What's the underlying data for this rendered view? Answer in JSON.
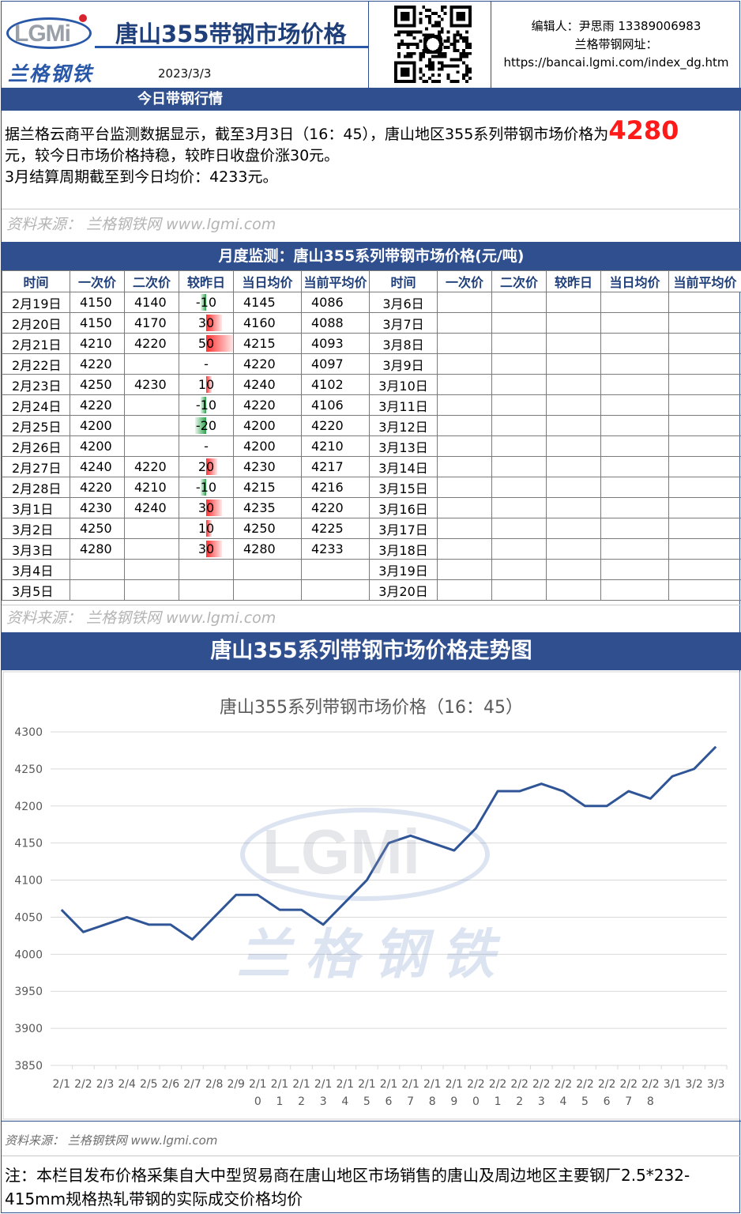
{
  "header": {
    "logo_text": "LGMi",
    "brand_cn": "兰格钢铁",
    "title": "唐山355带钢市场价格",
    "date": "2023/3/3",
    "editor": "编辑人：尹思雨 13389006983",
    "site_label": "兰格带钢网址：",
    "site_url": "https://bancai.lgmi.com/index_dg.htm"
  },
  "today_section": {
    "title": "今日带钢行情",
    "summary_prefix": "据兰格云商平台监测数据显示，截至3月3日（16：45），唐山地区355系列带钢市场价格为",
    "price": "4280",
    "summary_suffix": "元，较今日市场价格持稳，较昨日收盘价涨30元。",
    "summary_line3": "3月结算周期截至到今日均价：4233元。",
    "source": "资料来源： 兰格钢铁网 www.lgmi.com"
  },
  "monthly": {
    "title": "月度监测：唐山355系列带钢市场价格(元/吨)",
    "headers": [
      "时间",
      "一次价",
      "二次价",
      "较昨日",
      "当日均价",
      "当前平均价",
      "时间",
      "一次价",
      "二次价",
      "较昨日",
      "当日均价",
      "当前平均价"
    ],
    "rows": [
      {
        "date": "2月19日",
        "p1": "4150",
        "p2": "4140",
        "chg": "-10",
        "chg_num": -10,
        "avg": "4145",
        "cur": "4086",
        "date2": "3月6日"
      },
      {
        "date": "2月20日",
        "p1": "4150",
        "p2": "4170",
        "chg": "30",
        "chg_num": 30,
        "avg": "4160",
        "cur": "4088",
        "date2": "3月7日"
      },
      {
        "date": "2月21日",
        "p1": "4210",
        "p2": "4220",
        "chg": "50",
        "chg_num": 50,
        "avg": "4215",
        "cur": "4093",
        "date2": "3月8日"
      },
      {
        "date": "2月22日",
        "p1": "4220",
        "p2": "",
        "chg": "-",
        "chg_num": 0,
        "avg": "4220",
        "cur": "4097",
        "date2": "3月9日"
      },
      {
        "date": "2月23日",
        "p1": "4250",
        "p2": "4230",
        "chg": "10",
        "chg_num": 10,
        "avg": "4240",
        "cur": "4102",
        "date2": "3月10日"
      },
      {
        "date": "2月24日",
        "p1": "4220",
        "p2": "",
        "chg": "-10",
        "chg_num": -10,
        "avg": "4220",
        "cur": "4106",
        "date2": "3月11日"
      },
      {
        "date": "2月25日",
        "p1": "4200",
        "p2": "",
        "chg": "-20",
        "chg_num": -20,
        "avg": "4200",
        "cur": "4220",
        "date2": "3月12日"
      },
      {
        "date": "2月26日",
        "p1": "4200",
        "p2": "",
        "chg": "-",
        "chg_num": 0,
        "avg": "4200",
        "cur": "4210",
        "date2": "3月13日"
      },
      {
        "date": "2月27日",
        "p1": "4240",
        "p2": "4220",
        "chg": "20",
        "chg_num": 20,
        "avg": "4230",
        "cur": "4217",
        "date2": "3月14日"
      },
      {
        "date": "2月28日",
        "p1": "4220",
        "p2": "4210",
        "chg": "-10",
        "chg_num": -10,
        "avg": "4215",
        "cur": "4216",
        "date2": "3月15日"
      },
      {
        "date": "3月1日",
        "p1": "4230",
        "p2": "4240",
        "chg": "30",
        "chg_num": 30,
        "avg": "4235",
        "cur": "4220",
        "date2": "3月16日"
      },
      {
        "date": "3月2日",
        "p1": "4250",
        "p2": "",
        "chg": "10",
        "chg_num": 10,
        "avg": "4250",
        "cur": "4225",
        "date2": "3月17日"
      },
      {
        "date": "3月3日",
        "p1": "4280",
        "p2": "",
        "chg": "30",
        "chg_num": 30,
        "avg": "4280",
        "cur": "4233",
        "date2": "3月18日"
      },
      {
        "date": "3月4日",
        "p1": "",
        "p2": "",
        "chg": "",
        "chg_num": 0,
        "avg": "",
        "cur": "",
        "date2": "3月19日"
      },
      {
        "date": "3月5日",
        "p1": "",
        "p2": "",
        "chg": "",
        "chg_num": 0,
        "avg": "",
        "cur": "",
        "date2": "3月20日"
      }
    ],
    "source": "资料来源： 兰格钢铁网 www.lgmi.com"
  },
  "chart_section": {
    "title": "唐山355系列带钢市场价格走势图",
    "watermark_logo": "LGMi",
    "watermark_cn": "兰格钢铁",
    "source": "资料来源： 兰格钢铁网 www.lgmi.com"
  },
  "chart_data": {
    "type": "line",
    "title": "唐山355系列带钢市场价格（16：45）",
    "categories": [
      "2/1",
      "2/2",
      "2/3",
      "2/4",
      "2/5",
      "2/6",
      "2/7",
      "2/8",
      "2/9",
      "2/10",
      "2/11",
      "2/12",
      "2/13",
      "2/14",
      "2/15",
      "2/16",
      "2/17",
      "2/18",
      "2/19",
      "2/20",
      "2/21",
      "2/22",
      "2/23",
      "2/24",
      "2/25",
      "2/26",
      "2/27",
      "2/28",
      "3/1",
      "3/2",
      "3/3"
    ],
    "values": [
      4060,
      4030,
      4040,
      4050,
      4040,
      4040,
      4020,
      4050,
      4080,
      4080,
      4060,
      4060,
      4040,
      4070,
      4100,
      4150,
      4160,
      4150,
      4140,
      4170,
      4220,
      4220,
      4230,
      4220,
      4200,
      4200,
      4220,
      4210,
      4240,
      4250,
      4280
    ],
    "yticks": [
      3850,
      3900,
      3950,
      4000,
      4050,
      4100,
      4150,
      4200,
      4250,
      4300
    ],
    "ylim": [
      3850,
      4300
    ],
    "grid": true,
    "color": "#2f5597"
  },
  "note": "注：本栏目发布价格采集自大中型贸易商在唐山地区市场销售的唐山及周边地区主要钢厂2.5*232-415mm规格热轧带钢的实际成交价格均价"
}
